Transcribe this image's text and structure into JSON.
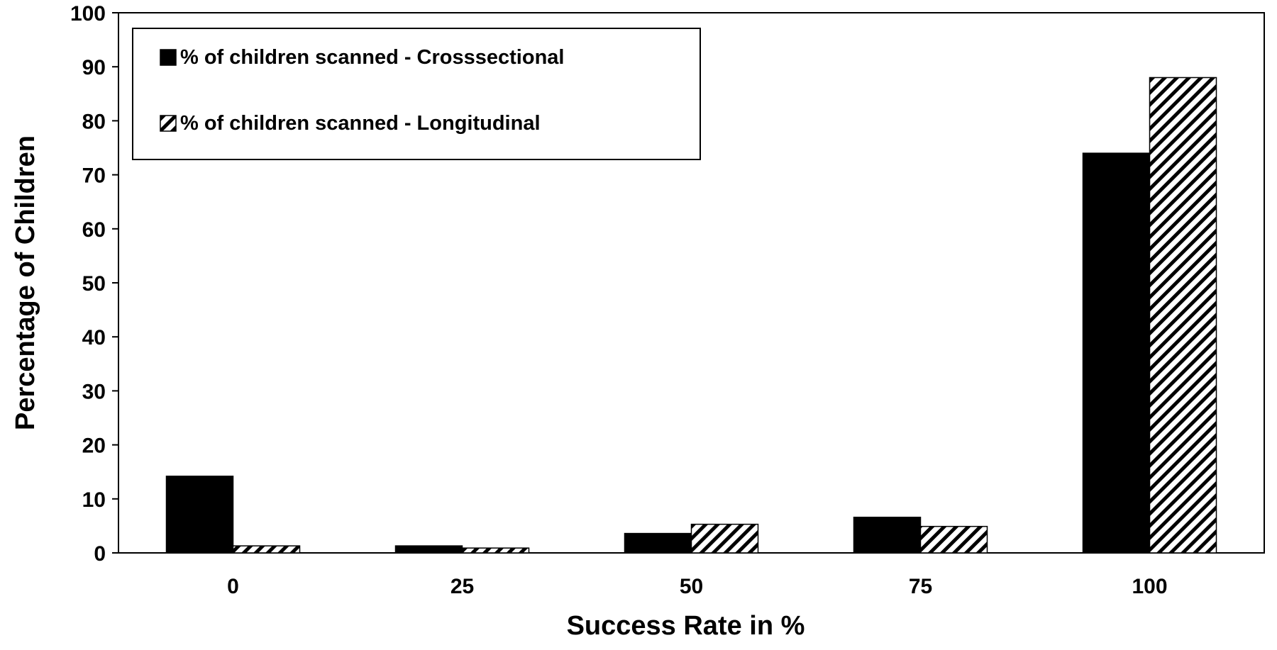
{
  "chart_data": {
    "type": "bar",
    "categories": [
      "0",
      "25",
      "50",
      "75",
      "100"
    ],
    "series": [
      {
        "name": "% of children scanned - Crosssectional",
        "values": [
          14.2,
          1.3,
          3.6,
          6.6,
          74.0
        ],
        "color": "#000000",
        "pattern": "solid"
      },
      {
        "name": "% of children scanned - Longitudinal",
        "values": [
          1.3,
          0.9,
          5.3,
          4.9,
          88.0
        ],
        "color": "#000000",
        "pattern": "diagonal-hatch"
      }
    ],
    "xlabel": "Success Rate in %",
    "ylabel": "Percentage of Children",
    "ylim": [
      0,
      100
    ],
    "yticks": [
      "0",
      "10",
      "20",
      "30",
      "40",
      "50",
      "60",
      "70",
      "80",
      "90",
      "100"
    ],
    "grid": false,
    "legend_position": "top-left"
  }
}
